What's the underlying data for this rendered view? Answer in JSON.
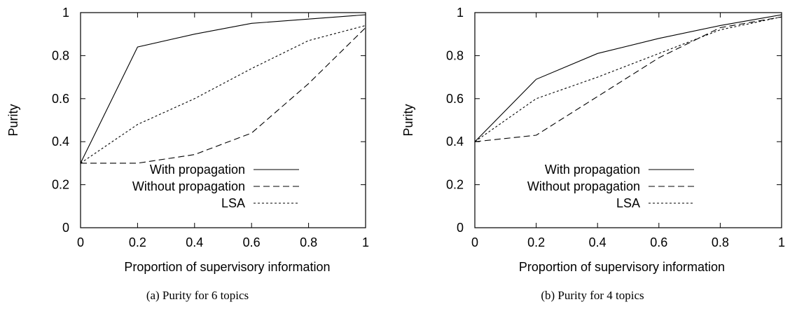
{
  "chart_data": [
    {
      "type": "line",
      "xlabel": "Proportion of supervisory information",
      "ylabel": "Purity",
      "xlim": [
        0,
        1
      ],
      "ylim": [
        0,
        1
      ],
      "x_ticks": [
        "0",
        "0.2",
        "0.4",
        "0.6",
        "0.8",
        "1"
      ],
      "y_ticks": [
        "0",
        "0.2",
        "0.4",
        "0.6",
        "0.8",
        "1"
      ],
      "legend_position": "bottom-right",
      "caption": "(a)  Purity for 6 topics",
      "series": [
        {
          "name": "With propagation",
          "style": "solid",
          "x": [
            0,
            0.2,
            0.4,
            0.6,
            0.8,
            1
          ],
          "y": [
            0.3,
            0.84,
            0.9,
            0.95,
            0.97,
            0.99
          ]
        },
        {
          "name": "Without propagation",
          "style": "dashed",
          "x": [
            0,
            0.2,
            0.4,
            0.6,
            0.8,
            1
          ],
          "y": [
            0.3,
            0.3,
            0.34,
            0.44,
            0.67,
            0.93
          ]
        },
        {
          "name": "LSA",
          "style": "dotted",
          "x": [
            0,
            0.2,
            0.4,
            0.6,
            0.8,
            1
          ],
          "y": [
            0.3,
            0.48,
            0.6,
            0.74,
            0.87,
            0.94
          ]
        }
      ]
    },
    {
      "type": "line",
      "xlabel": "Proportion of supervisory information",
      "ylabel": "Purity",
      "xlim": [
        0,
        1
      ],
      "ylim": [
        0,
        1
      ],
      "x_ticks": [
        "0",
        "0.2",
        "0.4",
        "0.6",
        "0.8",
        "1"
      ],
      "y_ticks": [
        "0",
        "0.2",
        "0.4",
        "0.6",
        "0.8",
        "1"
      ],
      "legend_position": "bottom-right",
      "caption": "(b)  Purity for 4 topics",
      "series": [
        {
          "name": "With propagation",
          "style": "solid",
          "x": [
            0,
            0.2,
            0.4,
            0.6,
            0.8,
            1
          ],
          "y": [
            0.4,
            0.69,
            0.81,
            0.88,
            0.94,
            0.99
          ]
        },
        {
          "name": "Without propagation",
          "style": "dashed",
          "x": [
            0,
            0.2,
            0.4,
            0.6,
            0.8,
            1
          ],
          "y": [
            0.4,
            0.43,
            0.61,
            0.79,
            0.93,
            0.98
          ]
        },
        {
          "name": "LSA",
          "style": "dotted",
          "x": [
            0,
            0.2,
            0.4,
            0.6,
            0.8,
            1
          ],
          "y": [
            0.4,
            0.6,
            0.7,
            0.81,
            0.92,
            0.98
          ]
        }
      ]
    }
  ]
}
